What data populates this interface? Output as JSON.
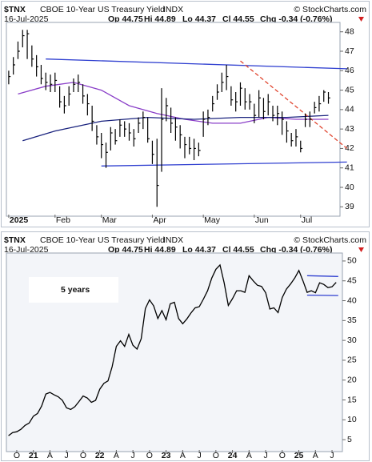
{
  "chart_data": [
    {
      "type": "ohlc",
      "symbol": "$TNX",
      "title": "CBOE 10-Year US Treasury Yield",
      "exchange": "INDX",
      "date": "16-Jul-2025",
      "quote": [
        "Op 44.75",
        "Hi 44.89",
        "Lo 44.37",
        "Cl 44.55",
        "Chg -0.34 (-0.76%)"
      ],
      "credit": "© StockCharts.com",
      "categories": [
        "2025",
        null,
        null,
        null,
        null,
        null,
        null,
        null,
        null,
        null,
        "Feb",
        null,
        null,
        null,
        null,
        null,
        null,
        null,
        null,
        null,
        "Mar",
        null,
        null,
        null,
        null,
        null,
        null,
        null,
        null,
        null,
        null,
        "Apr",
        null,
        null,
        null,
        null,
        null,
        null,
        null,
        null,
        null,
        null,
        "May",
        null,
        null,
        null,
        null,
        null,
        null,
        null,
        null,
        null,
        null,
        "Jun",
        null,
        null,
        null,
        null,
        null,
        null,
        null,
        null,
        null,
        "Jul",
        null,
        null,
        null,
        null,
        null,
        null
      ],
      "high": [
        46.0,
        46.7,
        47.5,
        48.1,
        48.1,
        47.3,
        46.8,
        46.3,
        45.9,
        45.8,
        45.9,
        45.2,
        44.7,
        45.2,
        45.6,
        45.8,
        45.3,
        44.8,
        44.2,
        43.2,
        42.8,
        42.3,
        43.1,
        43.0,
        43.5,
        43.4,
        43.3,
        43.0,
        43.6,
        43.9,
        43.6,
        42.4,
        42.5,
        45.1,
        44.6,
        44.1,
        43.6,
        43.2,
        42.6,
        42.6,
        42.5,
        42.3,
        43.9,
        44.0,
        44.7,
        45.3,
        45.9,
        46.3,
        45.2,
        44.9,
        45.4,
        45.1,
        44.8,
        44.3,
        45.0,
        44.6,
        44.8,
        44.2,
        44.2,
        43.9,
        43.4,
        42.8,
        43.0,
        42.4,
        43.8,
        43.9,
        44.4,
        44.7,
        45.0,
        44.9
      ],
      "low": [
        45.3,
        45.8,
        46.6,
        47.2,
        46.6,
        46.2,
        45.7,
        45.3,
        45.0,
        44.9,
        44.9,
        44.1,
        43.8,
        44.2,
        44.9,
        44.9,
        44.3,
        43.7,
        42.9,
        42.2,
        41.5,
        41.0,
        41.9,
        42.2,
        42.6,
        42.6,
        42.4,
        42.1,
        42.8,
        43.0,
        42.3,
        41.2,
        39.0,
        40.8,
        43.4,
        42.8,
        42.4,
        42.0,
        41.5,
        41.7,
        41.4,
        41.6,
        42.6,
        43.2,
        43.9,
        44.5,
        44.9,
        45.0,
        44.2,
        43.9,
        44.2,
        44.0,
        44.0,
        43.3,
        43.6,
        43.5,
        43.7,
        43.4,
        43.2,
        42.7,
        42.3,
        42.1,
        42.1,
        41.8,
        43.1,
        43.1,
        43.8,
        43.9,
        44.4,
        44.3
      ],
      "close": [
        45.7,
        46.3,
        47.0,
        47.8,
        47.9,
        46.6,
        46.2,
        45.6,
        45.4,
        45.3,
        45.5,
        44.4,
        44.2,
        44.8,
        45.3,
        45.4,
        44.7,
        44.3,
        43.4,
        42.6,
        42.2,
        41.8,
        42.8,
        42.4,
        43.2,
        43.0,
        42.8,
        42.5,
        43.3,
        43.6,
        42.5,
        41.7,
        40.1,
        43.5,
        44.2,
        43.3,
        43.1,
        42.7,
        42.2,
        42.0,
        42.0,
        41.9,
        43.5,
        43.6,
        44.3,
        44.9,
        45.4,
        45.7,
        44.5,
        44.4,
        45.1,
        44.4,
        44.4,
        43.7,
        44.6,
        43.9,
        44.4,
        43.7,
        43.8,
        43.5,
        42.9,
        42.4,
        42.6,
        42.0,
        43.5,
        43.5,
        44.1,
        44.3,
        44.9,
        44.6
      ],
      "color": "#000000",
      "overlays": [
        {
          "color": "#8a3fc8",
          "x": [
            2,
            8,
            14,
            20,
            26,
            32,
            38,
            44,
            50,
            56,
            62,
            69
          ],
          "values": [
            44.8,
            45.2,
            45.4,
            45.0,
            44.2,
            43.8,
            43.5,
            43.3,
            43.3,
            43.6,
            43.5,
            43.5
          ]
        },
        {
          "color": "#1a237e",
          "x": [
            3,
            10,
            20,
            30,
            40,
            50,
            60,
            69
          ],
          "values": [
            42.4,
            42.9,
            43.4,
            43.6,
            43.5,
            43.6,
            43.6,
            43.7
          ]
        },
        {
          "color": "#2f3fd0",
          "x": [
            8,
            73
          ],
          "values": [
            46.6,
            46.1
          ]
        },
        {
          "color": "#2f3fd0",
          "x": [
            20,
            73
          ],
          "values": [
            41.1,
            41.3
          ]
        },
        {
          "color": "#e0452f",
          "dash": true,
          "x": [
            50,
            73
          ],
          "values": [
            46.5,
            42.0
          ]
        }
      ],
      "xlim": [
        -0.5,
        71.5
      ],
      "ylim": [
        38.6,
        48.4
      ],
      "yticks": [
        39,
        40,
        41,
        42,
        43,
        44,
        45,
        46,
        47,
        48
      ]
    },
    {
      "type": "line",
      "symbol": "$TNX",
      "title": "CBOE 10-Year US Treasury Yield",
      "exchange": "INDX",
      "date": "16-Jul-2025",
      "quote": [
        "Op 44.75",
        "Hi 44.89",
        "Lo 44.37",
        "Cl 44.55",
        "Chg -0.34 (-0.76%)"
      ],
      "credit": "© StockCharts.com",
      "annotation": "5 years",
      "categories": [
        null,
        null,
        "O",
        null,
        null,
        null,
        "21",
        null,
        null,
        null,
        "A",
        null,
        null,
        null,
        "J",
        null,
        null,
        null,
        "O",
        null,
        null,
        null,
        "22",
        null,
        null,
        null,
        "A",
        null,
        null,
        null,
        "J",
        null,
        null,
        null,
        "O",
        null,
        null,
        null,
        "23",
        null,
        null,
        null,
        "A",
        null,
        null,
        null,
        "J",
        null,
        null,
        null,
        "O",
        null,
        null,
        null,
        "24",
        null,
        null,
        null,
        "A",
        null,
        null,
        null,
        "J",
        null,
        null,
        null,
        "O",
        null,
        null,
        null,
        "25",
        null,
        null,
        null,
        "A",
        null,
        null,
        null,
        "J",
        null
      ],
      "values": [
        6.0,
        6.8,
        7.0,
        7.6,
        8.6,
        9.2,
        10.9,
        11.6,
        13.5,
        16.5,
        16.9,
        16.3,
        15.8,
        14.9,
        13.0,
        12.6,
        13.3,
        14.6,
        16.0,
        15.5,
        14.4,
        14.9,
        17.7,
        19.2,
        19.8,
        23.4,
        28.5,
        29.9,
        28.5,
        31.5,
        28.8,
        27.8,
        30.4,
        38.0,
        40.2,
        38.7,
        35.5,
        37.5,
        35.2,
        39.2,
        39.6,
        35.5,
        34.2,
        35.4,
        36.9,
        38.2,
        38.5,
        40.4,
        42.5,
        45.7,
        47.9,
        49.0,
        44.5,
        38.8,
        40.5,
        42.5,
        42.5,
        42.1,
        46.3,
        45.0,
        43.9,
        43.6,
        42.0,
        37.9,
        38.2,
        37.0,
        40.8,
        42.9,
        44.2,
        45.7,
        47.6,
        45.0,
        42.1,
        42.5,
        42.0,
        44.5,
        44.1,
        43.3,
        43.5,
        44.6
      ],
      "color": "#000000",
      "overlays": [
        {
          "color": "#2f3fd0",
          "x": [
            72,
            79.5
          ],
          "values": [
            46.3,
            46.1
          ]
        },
        {
          "color": "#2f3fd0",
          "x": [
            72,
            79.5
          ],
          "values": [
            41.4,
            41.3
          ]
        }
      ],
      "xlim": [
        -0.5,
        80.5
      ],
      "ylim": [
        2.4,
        51.6
      ],
      "yticks": [
        5,
        10,
        15,
        20,
        25,
        30,
        35,
        40,
        45,
        50
      ]
    }
  ]
}
